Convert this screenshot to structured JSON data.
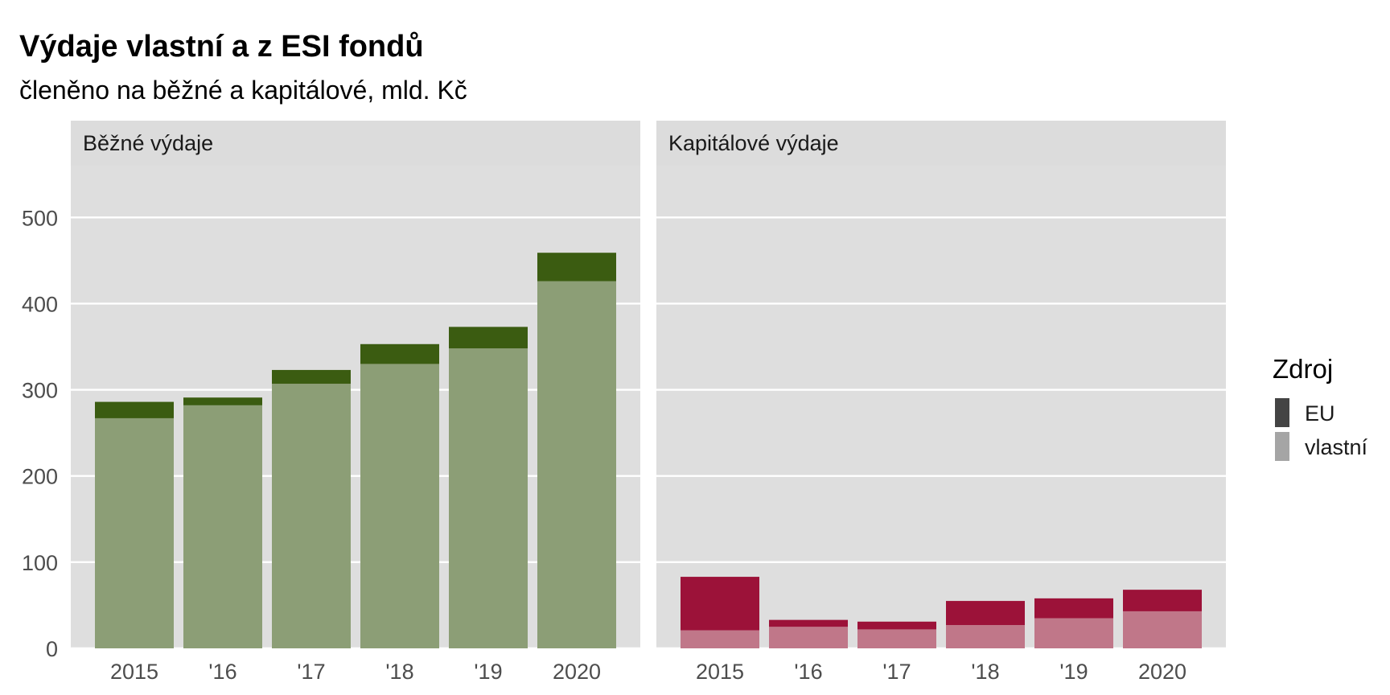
{
  "title": "Výdaje vlastní a z ESI fondů",
  "subtitle": "členěno na běžné a kapitálové, mld. Kč",
  "legend": {
    "title": "Zdroj",
    "items": [
      {
        "label": "EU",
        "color": "#444444"
      },
      {
        "label": "vlastní",
        "color": "#a5a5a5"
      }
    ]
  },
  "chart_data": [
    {
      "type": "bar",
      "stacked": true,
      "panel_title": "Běžné výdaje",
      "categories": [
        "2015",
        "'16",
        "'17",
        "'18",
        "'19",
        "2020"
      ],
      "series": [
        {
          "name": "vlastní",
          "values": [
            267,
            282,
            307,
            330,
            348,
            426
          ],
          "color": "#8c9e76"
        },
        {
          "name": "EU",
          "values": [
            19,
            9,
            16,
            23,
            25,
            33
          ],
          "color": "#3b5c11"
        }
      ],
      "ylim": [
        0,
        560
      ],
      "yticks": [
        0,
        100,
        200,
        300,
        400,
        500
      ],
      "grid": true
    },
    {
      "type": "bar",
      "stacked": true,
      "panel_title": "Kapitálové výdaje",
      "categories": [
        "2015",
        "'16",
        "'17",
        "'18",
        "'19",
        "2020"
      ],
      "series": [
        {
          "name": "vlastní",
          "values": [
            21,
            25,
            22,
            27,
            35,
            43
          ],
          "color": "#c07789"
        },
        {
          "name": "EU",
          "values": [
            62,
            8,
            9,
            28,
            23,
            25
          ],
          "color": "#9c1239"
        }
      ],
      "ylim": [
        0,
        560
      ],
      "yticks": [
        0,
        100,
        200,
        300,
        400,
        500
      ],
      "grid": true
    }
  ]
}
